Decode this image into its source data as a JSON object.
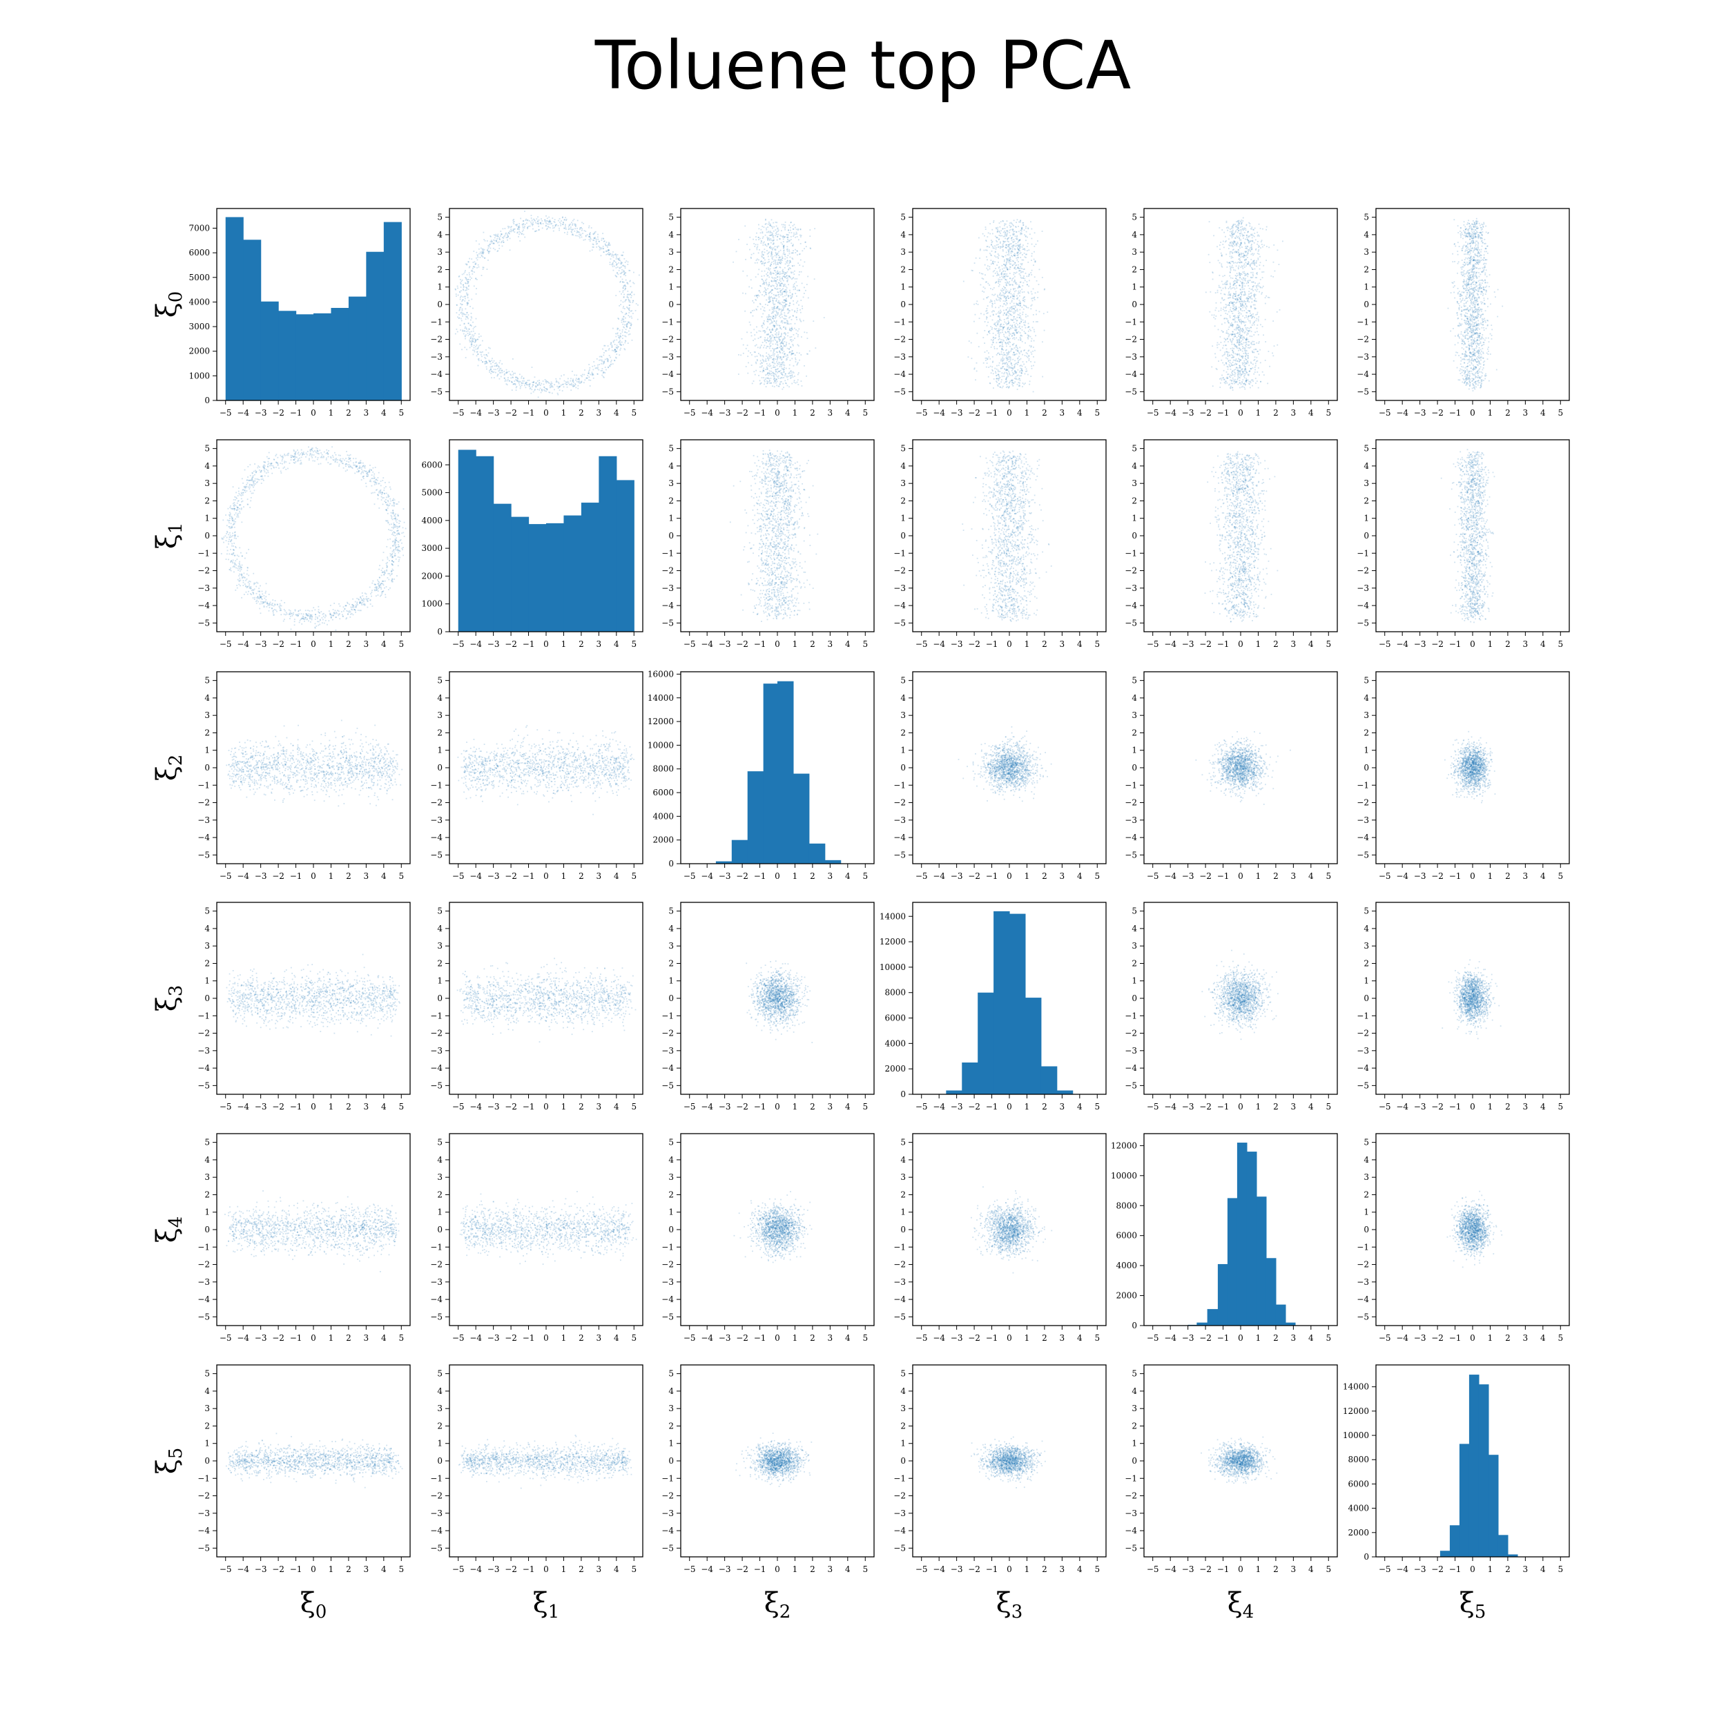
{
  "title": "Toluene top PCA",
  "variables": [
    "ξ0",
    "ξ1",
    "ξ2",
    "ξ3",
    "ξ4",
    "ξ5"
  ],
  "colors": {
    "accent": "#1f77b4",
    "frame": "#000000",
    "background": "#ffffff"
  },
  "chart_data": {
    "type": "scatter",
    "layout": "pair-plot matrix, histograms on diagonal, scatter off-diagonal",
    "xlim": [
      -5.5,
      5.5
    ],
    "ylim": [
      -5.5,
      5.5
    ],
    "ticks": [
      -5,
      -4,
      -3,
      -2,
      -1,
      0,
      1,
      2,
      3,
      4,
      5
    ],
    "tick_labels": [
      "−5",
      "−4",
      "−3",
      "−2",
      "−1",
      "0",
      "1",
      "2",
      "3",
      "4",
      "5"
    ],
    "grid": false,
    "legend": "none",
    "row_labels": [
      "ξ0",
      "ξ1",
      "ξ2",
      "ξ3",
      "ξ4",
      "ξ5"
    ],
    "column_labels": [
      "ξ0",
      "ξ1",
      "ξ2",
      "ξ3",
      "ξ4",
      "ξ5"
    ],
    "histograms": [
      {
        "variable": "ξ0",
        "bin_edges": [
          -5.0,
          -4.0,
          -3.0,
          -2.0,
          -1.0,
          0.0,
          1.0,
          2.0,
          3.0,
          4.0,
          5.0
        ],
        "counts": [
          7450,
          6530,
          4020,
          3640,
          3500,
          3540,
          3760,
          4220,
          6040,
          7250
        ],
        "yticks": [
          0,
          1000,
          2000,
          3000,
          4000,
          5000,
          6000,
          7000
        ],
        "ylim": [
          0,
          7800
        ]
      },
      {
        "variable": "ξ1",
        "bin_edges": [
          -5.0,
          -4.0,
          -3.0,
          -2.0,
          -1.0,
          0.0,
          1.0,
          2.0,
          3.0,
          4.0,
          5.0
        ],
        "counts": [
          6540,
          6310,
          4600,
          4130,
          3870,
          3900,
          4180,
          4640,
          6310,
          5450
        ],
        "yticks": [
          0,
          1000,
          2000,
          3000,
          4000,
          5000,
          6000
        ],
        "ylim": [
          0,
          6900
        ]
      },
      {
        "variable": "ξ2",
        "bin_edges": [
          -3.5,
          -2.6,
          -1.7,
          -0.8,
          0.0,
          0.9,
          1.8,
          2.7,
          3.6
        ],
        "counts": [
          200,
          2000,
          7800,
          15200,
          15400,
          7600,
          1700,
          300
        ],
        "yticks": [
          0,
          2000,
          4000,
          6000,
          8000,
          10000,
          12000,
          14000,
          16000
        ],
        "ylim": [
          0,
          16200
        ]
      },
      {
        "variable": "ξ3",
        "bin_edges": [
          -3.6,
          -2.7,
          -1.8,
          -0.9,
          0.0,
          0.9,
          1.8,
          2.7,
          3.6
        ],
        "counts": [
          300,
          2500,
          8000,
          14400,
          14200,
          7600,
          2200,
          300
        ],
        "yticks": [
          0,
          2000,
          4000,
          6000,
          8000,
          10000,
          12000,
          14000
        ],
        "ylim": [
          0,
          15100
        ]
      },
      {
        "variable": "ξ4",
        "bin_edges": [
          -3.0,
          -2.5,
          -1.9,
          -1.3,
          -0.75,
          -0.2,
          0.35,
          0.9,
          1.45,
          2.0,
          2.55,
          3.1
        ],
        "counts": [
          50,
          200,
          1100,
          4100,
          8500,
          12200,
          11600,
          8600,
          4500,
          1400,
          200
        ],
        "yticks": [
          0,
          2000,
          4000,
          6000,
          8000,
          10000,
          12000
        ],
        "ylim": [
          0,
          12800
        ]
      },
      {
        "variable": "ξ5",
        "bin_edges": [
          -1.85,
          -1.3,
          -0.75,
          -0.2,
          0.35,
          0.9,
          1.45,
          2.0,
          2.55
        ],
        "counts": [
          500,
          2600,
          9300,
          15000,
          14200,
          8400,
          1800,
          200
        ],
        "yticks": [
          0,
          2000,
          4000,
          6000,
          8000,
          10000,
          12000,
          14000
        ],
        "ylim": [
          0,
          15800
        ]
      }
    ],
    "scatter_distributions": [
      {
        "variable": "ξ0",
        "spread": 0.15,
        "core": 0.1
      },
      {
        "variable": "ξ1",
        "spread": 0.15,
        "core": 0.1
      },
      {
        "variable": "ξ2",
        "spread": 1.0,
        "core": 0.65,
        "edge_spread": 0.75
      },
      {
        "variable": "ξ3",
        "spread": 1.0,
        "core": 0.7,
        "edge_spread": 0.7
      },
      {
        "variable": "ξ4",
        "spread": 0.9,
        "core": 0.65,
        "edge_spread": 0.7
      },
      {
        "variable": "ξ5",
        "spread": 0.6,
        "core": 0.45,
        "edge_spread": 0.5
      }
    ],
    "ring": {
      "variables": [
        "ξ0",
        "ξ1"
      ],
      "radius": 4.7,
      "width": 0.25
    }
  }
}
